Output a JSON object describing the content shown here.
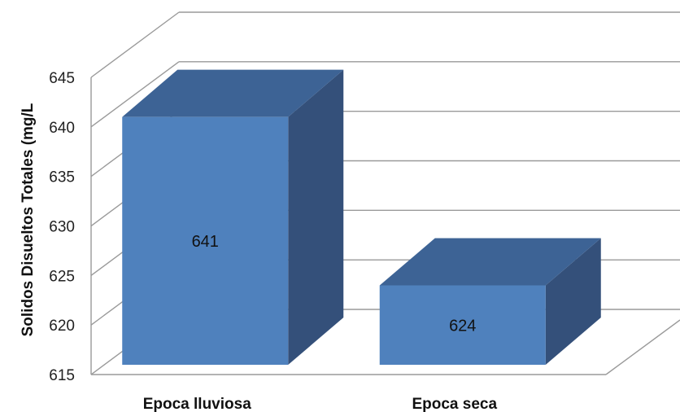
{
  "chart_data": {
    "type": "bar",
    "title": "",
    "xlabel": "",
    "ylabel": "Solidos Disueltos Totales (mg/L",
    "categories": [
      "Epoca lluviosa",
      "Epoca seca"
    ],
    "values": [
      641,
      624
    ],
    "data_labels": [
      "641",
      "624"
    ],
    "ylim": [
      615,
      645
    ],
    "yticks": [
      "615",
      "620",
      "625",
      "630",
      "635",
      "640",
      "645"
    ],
    "grid": true,
    "legend": "none",
    "style": "3d-column",
    "colors": {
      "front": "#4f81bd",
      "top": "#3d6395",
      "side": "#34507a",
      "grid": "#9a9a9a"
    }
  }
}
